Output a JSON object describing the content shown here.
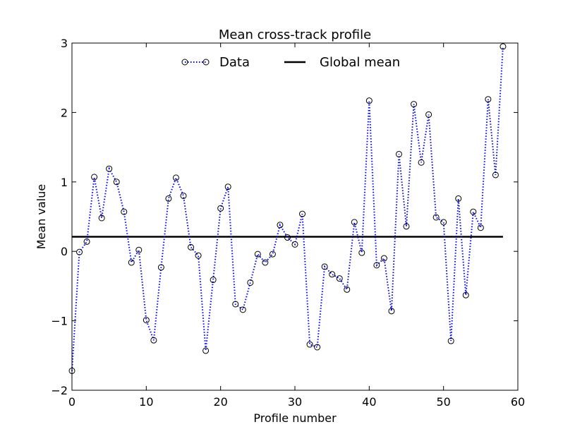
{
  "chart_data": {
    "type": "line",
    "title": "Mean cross-track profile",
    "xlabel": "Profile number",
    "ylabel": "Mean value",
    "xlim": [
      0,
      60
    ],
    "ylim": [
      -2,
      3
    ],
    "xticks": [
      0,
      10,
      20,
      30,
      40,
      50,
      60
    ],
    "xtick_labels": [
      "0",
      "10",
      "20",
      "30",
      "40",
      "50",
      "60"
    ],
    "yticks": [
      -2,
      -1,
      0,
      1,
      2,
      3
    ],
    "ytick_labels": [
      "−2",
      "−1",
      "0",
      "1",
      "2",
      "3"
    ],
    "grid": false,
    "legend_position": "top-center",
    "series": [
      {
        "name": "Data",
        "color": "#0000ff",
        "line_style": "dotted",
        "marker": "open-circle",
        "x": [
          0,
          1,
          2,
          3,
          4,
          5,
          6,
          7,
          8,
          9,
          10,
          11,
          12,
          13,
          14,
          15,
          16,
          17,
          18,
          19,
          20,
          21,
          22,
          23,
          24,
          25,
          26,
          27,
          28,
          29,
          30,
          31,
          32,
          33,
          34,
          35,
          36,
          37,
          38,
          39,
          40,
          41,
          42,
          43,
          44,
          45,
          46,
          47,
          48,
          49,
          50,
          51,
          52,
          53,
          54,
          55,
          56,
          57,
          58
        ],
        "y": [
          -1.72,
          -0.01,
          0.14,
          1.07,
          0.48,
          1.19,
          1.0,
          0.57,
          -0.16,
          0.02,
          -0.99,
          -1.28,
          -0.23,
          0.76,
          1.06,
          0.8,
          0.06,
          -0.06,
          -1.43,
          -0.41,
          0.62,
          0.93,
          -0.76,
          -0.84,
          -0.45,
          -0.04,
          -0.16,
          -0.04,
          0.38,
          0.2,
          0.1,
          0.54,
          -1.34,
          -1.38,
          -0.22,
          -0.33,
          -0.39,
          -0.55,
          0.42,
          -0.02,
          2.17,
          -0.2,
          -0.1,
          -0.86,
          1.4,
          0.36,
          2.12,
          1.28,
          1.97,
          0.49,
          0.42,
          -1.29,
          0.76,
          -0.63,
          0.57,
          0.34,
          2.19,
          1.1,
          2.95
        ]
      },
      {
        "name": "Global mean",
        "color": "#000000",
        "line_style": "solid",
        "x": [
          0,
          58
        ],
        "y": [
          0.21,
          0.21
        ]
      }
    ]
  }
}
